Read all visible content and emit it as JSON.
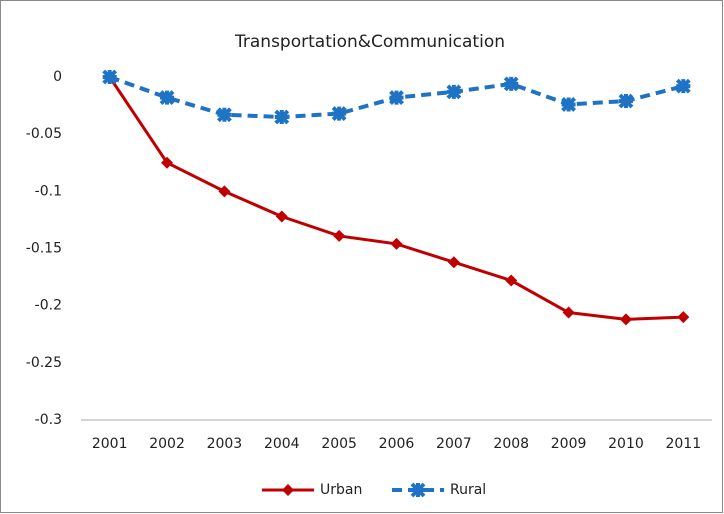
{
  "chart_data": {
    "type": "line",
    "title": "Transportation&Communication",
    "categories": [
      "2001",
      "2002",
      "2003",
      "2004",
      "2005",
      "2006",
      "2007",
      "2008",
      "2009",
      "2010",
      "2011"
    ],
    "series": [
      {
        "name": "Urban",
        "color": "#c00000",
        "dashed": false,
        "marker": "diamond",
        "values": [
          0,
          -0.075,
          -0.1,
          -0.122,
          -0.139,
          -0.146,
          -0.162,
          -0.178,
          -0.206,
          -0.212,
          -0.21
        ]
      },
      {
        "name": "Rural",
        "color": "#1f73c4",
        "dashed": true,
        "marker": "cross",
        "values": [
          0,
          -0.018,
          -0.033,
          -0.035,
          -0.032,
          -0.018,
          -0.013,
          -0.006,
          -0.024,
          -0.021,
          -0.008
        ]
      }
    ],
    "ylim": [
      -0.3,
      0
    ],
    "yticks": [
      0,
      -0.05,
      -0.1,
      -0.15,
      -0.2,
      -0.25,
      -0.3
    ],
    "grid": false,
    "legend": "bottom"
  }
}
